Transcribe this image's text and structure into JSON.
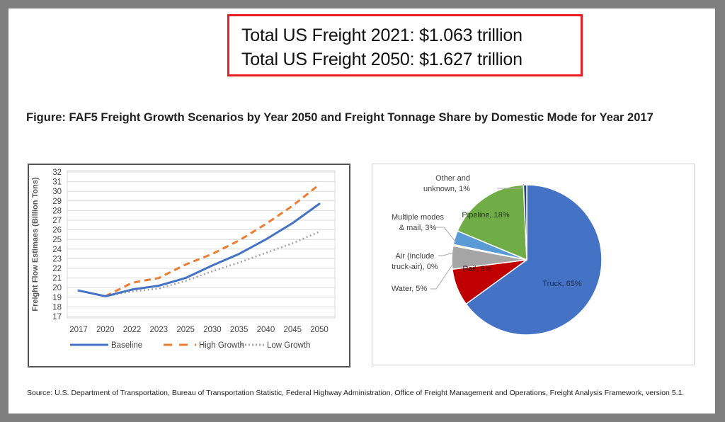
{
  "callout": {
    "line1": "Total US Freight 2021: $1.063 trillion",
    "line2": "Total US Freight 2050: $1.627 trillion",
    "border_color": "#ee1c24"
  },
  "figure_title": "Figure: FAF5 Freight Growth Scenarios by Year 2050 and Freight Tonnage Share by Domestic Mode for Year 2017",
  "source": "Source: U.S. Department of Transportation, Bureau of Transportation Statistic, Federal Highway Administration, Office of Freight Management and Operations, Freight Analysis Framework, version 5.1.",
  "chart_data": [
    {
      "type": "line",
      "title": "",
      "xlabel": "",
      "ylabel": "Freight Flow Estimaes (Billion Tons)",
      "categories": [
        "2017",
        "2020",
        "2022",
        "2023",
        "2025",
        "2030",
        "2035",
        "2040",
        "2045",
        "2050"
      ],
      "ylim": [
        17,
        32
      ],
      "yticks": [
        17,
        18,
        19,
        20,
        21,
        22,
        23,
        24,
        25,
        26,
        27,
        28,
        29,
        30,
        31,
        32
      ],
      "grid": true,
      "legend": "bottom",
      "series": [
        {
          "name": "Baseline",
          "style": "solid",
          "color": "#4472c4",
          "values": [
            19.7,
            19.1,
            19.8,
            20.2,
            21.0,
            22.3,
            23.5,
            25.0,
            26.7,
            28.7
          ]
        },
        {
          "name": "High Growth",
          "style": "dashed",
          "color": "#ed7d31",
          "values": [
            null,
            19.1,
            20.5,
            21.0,
            22.4,
            23.5,
            24.9,
            26.6,
            28.5,
            30.7
          ]
        },
        {
          "name": "Low Growth",
          "style": "dotted",
          "color": "#a5a5a5",
          "values": [
            null,
            19.1,
            19.6,
            19.9,
            20.7,
            21.7,
            22.6,
            23.6,
            24.6,
            25.8
          ]
        }
      ]
    },
    {
      "type": "pie",
      "title": "",
      "slices": [
        {
          "label": "Truck, 65%",
          "name": "Truck",
          "value": 65,
          "color": "#4472c4"
        },
        {
          "label": "Rail, 8%",
          "name": "Rail",
          "value": 8,
          "color": "#c00000"
        },
        {
          "label": "Water, 5%",
          "name": "Water",
          "value": 5,
          "color": "#a5a5a5"
        },
        {
          "label": "Air (include truck-air), 0%",
          "name": "Air (include truck-air)",
          "value": 0.3,
          "color": "#ffc000"
        },
        {
          "label": "Multiple modes & mail, 3%",
          "name": "Multiple modes & mail",
          "value": 3,
          "color": "#5b9bd5"
        },
        {
          "label": "Pipeline, 18%",
          "name": "Pipeline",
          "value": 18,
          "color": "#70ad47"
        },
        {
          "label": "Other and unknown, 1%",
          "name": "Other and unknown",
          "value": 0.7,
          "color": "#264478"
        }
      ],
      "label_lines": {
        "Truck": [
          "Truck, 65%"
        ],
        "Rail": [
          "Rail, 8%"
        ],
        "Water": [
          "Water, 5%"
        ],
        "Air": [
          "Air (include",
          "truck-air), 0%"
        ],
        "Multiple": [
          "Multiple modes",
          "& mail, 3%"
        ],
        "Pipeline": [
          "Pipeline, 18%"
        ],
        "Other": [
          "Other and",
          "unknown, 1%"
        ]
      }
    }
  ]
}
